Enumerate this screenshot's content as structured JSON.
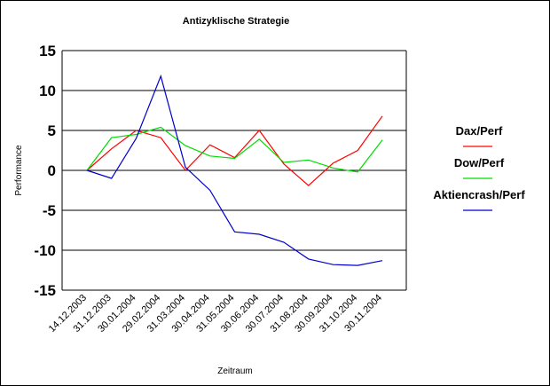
{
  "chart_data": {
    "type": "line",
    "title": "Antizyklische Strategie",
    "xlabel": "Zeitraum",
    "ylabel": "Performance",
    "ylim": [
      -15,
      15
    ],
    "yticks": [
      15,
      10,
      5,
      0,
      -5,
      -10,
      -15
    ],
    "grid": true,
    "legend_position": "right",
    "categories": [
      "14.12.2003",
      "31.12.2003",
      "30.01.2004",
      "29.02.2004",
      "31.03.2004",
      "30.04.2004",
      "31.05.2004",
      "30.06.2004",
      "30.07.2004",
      "31.08.2004",
      "30.09.2004",
      "31.10.2004",
      "30.11.2004"
    ],
    "series": [
      {
        "name": "Dax/Perf",
        "color": "#ff0000",
        "values": [
          0,
          2.7,
          5.0,
          4.1,
          0.0,
          3.2,
          1.6,
          5.0,
          0.8,
          -1.9,
          0.9,
          2.5,
          6.8
        ]
      },
      {
        "name": "Dow/Perf",
        "color": "#00dd00",
        "values": [
          0,
          4.1,
          4.5,
          5.4,
          3.1,
          1.8,
          1.5,
          3.9,
          1.0,
          1.3,
          0.3,
          -0.2,
          3.8
        ]
      },
      {
        "name": "Aktiencrash/Perf",
        "color": "#0000cc",
        "values": [
          0,
          -1.0,
          4.0,
          11.8,
          0.4,
          -2.5,
          -7.7,
          -8.0,
          -9.0,
          -11.1,
          -11.8,
          -11.9,
          -11.3
        ]
      }
    ]
  }
}
